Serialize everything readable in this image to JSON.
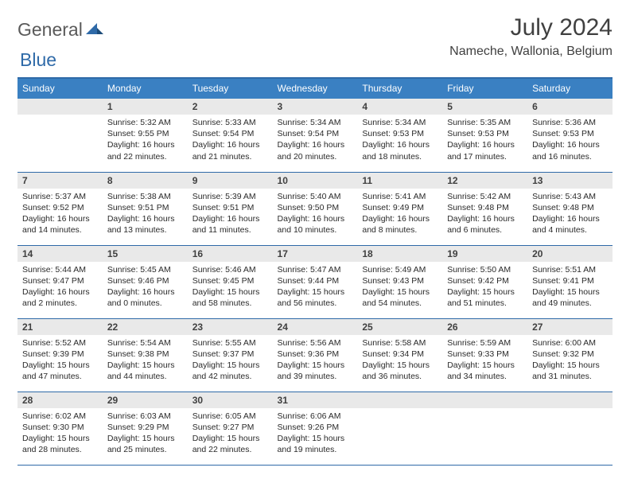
{
  "brand": {
    "part1": "General",
    "part2": "Blue"
  },
  "title": "July 2024",
  "location": "Nameche, Wallonia, Belgium",
  "colors": {
    "header_bg": "#3a80c2",
    "border": "#2f6aa8",
    "daynum_bg": "#e9e9e9",
    "text": "#2a2a2a",
    "title_text": "#404040"
  },
  "day_names": [
    "Sunday",
    "Monday",
    "Tuesday",
    "Wednesday",
    "Thursday",
    "Friday",
    "Saturday"
  ],
  "weeks": [
    [
      null,
      {
        "n": "1",
        "sr": "Sunrise: 5:32 AM",
        "ss": "Sunset: 9:55 PM",
        "dl": "Daylight: 16 hours and 22 minutes."
      },
      {
        "n": "2",
        "sr": "Sunrise: 5:33 AM",
        "ss": "Sunset: 9:54 PM",
        "dl": "Daylight: 16 hours and 21 minutes."
      },
      {
        "n": "3",
        "sr": "Sunrise: 5:34 AM",
        "ss": "Sunset: 9:54 PM",
        "dl": "Daylight: 16 hours and 20 minutes."
      },
      {
        "n": "4",
        "sr": "Sunrise: 5:34 AM",
        "ss": "Sunset: 9:53 PM",
        "dl": "Daylight: 16 hours and 18 minutes."
      },
      {
        "n": "5",
        "sr": "Sunrise: 5:35 AM",
        "ss": "Sunset: 9:53 PM",
        "dl": "Daylight: 16 hours and 17 minutes."
      },
      {
        "n": "6",
        "sr": "Sunrise: 5:36 AM",
        "ss": "Sunset: 9:53 PM",
        "dl": "Daylight: 16 hours and 16 minutes."
      }
    ],
    [
      {
        "n": "7",
        "sr": "Sunrise: 5:37 AM",
        "ss": "Sunset: 9:52 PM",
        "dl": "Daylight: 16 hours and 14 minutes."
      },
      {
        "n": "8",
        "sr": "Sunrise: 5:38 AM",
        "ss": "Sunset: 9:51 PM",
        "dl": "Daylight: 16 hours and 13 minutes."
      },
      {
        "n": "9",
        "sr": "Sunrise: 5:39 AM",
        "ss": "Sunset: 9:51 PM",
        "dl": "Daylight: 16 hours and 11 minutes."
      },
      {
        "n": "10",
        "sr": "Sunrise: 5:40 AM",
        "ss": "Sunset: 9:50 PM",
        "dl": "Daylight: 16 hours and 10 minutes."
      },
      {
        "n": "11",
        "sr": "Sunrise: 5:41 AM",
        "ss": "Sunset: 9:49 PM",
        "dl": "Daylight: 16 hours and 8 minutes."
      },
      {
        "n": "12",
        "sr": "Sunrise: 5:42 AM",
        "ss": "Sunset: 9:48 PM",
        "dl": "Daylight: 16 hours and 6 minutes."
      },
      {
        "n": "13",
        "sr": "Sunrise: 5:43 AM",
        "ss": "Sunset: 9:48 PM",
        "dl": "Daylight: 16 hours and 4 minutes."
      }
    ],
    [
      {
        "n": "14",
        "sr": "Sunrise: 5:44 AM",
        "ss": "Sunset: 9:47 PM",
        "dl": "Daylight: 16 hours and 2 minutes."
      },
      {
        "n": "15",
        "sr": "Sunrise: 5:45 AM",
        "ss": "Sunset: 9:46 PM",
        "dl": "Daylight: 16 hours and 0 minutes."
      },
      {
        "n": "16",
        "sr": "Sunrise: 5:46 AM",
        "ss": "Sunset: 9:45 PM",
        "dl": "Daylight: 15 hours and 58 minutes."
      },
      {
        "n": "17",
        "sr": "Sunrise: 5:47 AM",
        "ss": "Sunset: 9:44 PM",
        "dl": "Daylight: 15 hours and 56 minutes."
      },
      {
        "n": "18",
        "sr": "Sunrise: 5:49 AM",
        "ss": "Sunset: 9:43 PM",
        "dl": "Daylight: 15 hours and 54 minutes."
      },
      {
        "n": "19",
        "sr": "Sunrise: 5:50 AM",
        "ss": "Sunset: 9:42 PM",
        "dl": "Daylight: 15 hours and 51 minutes."
      },
      {
        "n": "20",
        "sr": "Sunrise: 5:51 AM",
        "ss": "Sunset: 9:41 PM",
        "dl": "Daylight: 15 hours and 49 minutes."
      }
    ],
    [
      {
        "n": "21",
        "sr": "Sunrise: 5:52 AM",
        "ss": "Sunset: 9:39 PM",
        "dl": "Daylight: 15 hours and 47 minutes."
      },
      {
        "n": "22",
        "sr": "Sunrise: 5:54 AM",
        "ss": "Sunset: 9:38 PM",
        "dl": "Daylight: 15 hours and 44 minutes."
      },
      {
        "n": "23",
        "sr": "Sunrise: 5:55 AM",
        "ss": "Sunset: 9:37 PM",
        "dl": "Daylight: 15 hours and 42 minutes."
      },
      {
        "n": "24",
        "sr": "Sunrise: 5:56 AM",
        "ss": "Sunset: 9:36 PM",
        "dl": "Daylight: 15 hours and 39 minutes."
      },
      {
        "n": "25",
        "sr": "Sunrise: 5:58 AM",
        "ss": "Sunset: 9:34 PM",
        "dl": "Daylight: 15 hours and 36 minutes."
      },
      {
        "n": "26",
        "sr": "Sunrise: 5:59 AM",
        "ss": "Sunset: 9:33 PM",
        "dl": "Daylight: 15 hours and 34 minutes."
      },
      {
        "n": "27",
        "sr": "Sunrise: 6:00 AM",
        "ss": "Sunset: 9:32 PM",
        "dl": "Daylight: 15 hours and 31 minutes."
      }
    ],
    [
      {
        "n": "28",
        "sr": "Sunrise: 6:02 AM",
        "ss": "Sunset: 9:30 PM",
        "dl": "Daylight: 15 hours and 28 minutes."
      },
      {
        "n": "29",
        "sr": "Sunrise: 6:03 AM",
        "ss": "Sunset: 9:29 PM",
        "dl": "Daylight: 15 hours and 25 minutes."
      },
      {
        "n": "30",
        "sr": "Sunrise: 6:05 AM",
        "ss": "Sunset: 9:27 PM",
        "dl": "Daylight: 15 hours and 22 minutes."
      },
      {
        "n": "31",
        "sr": "Sunrise: 6:06 AM",
        "ss": "Sunset: 9:26 PM",
        "dl": "Daylight: 15 hours and 19 minutes."
      },
      null,
      null,
      null
    ]
  ]
}
